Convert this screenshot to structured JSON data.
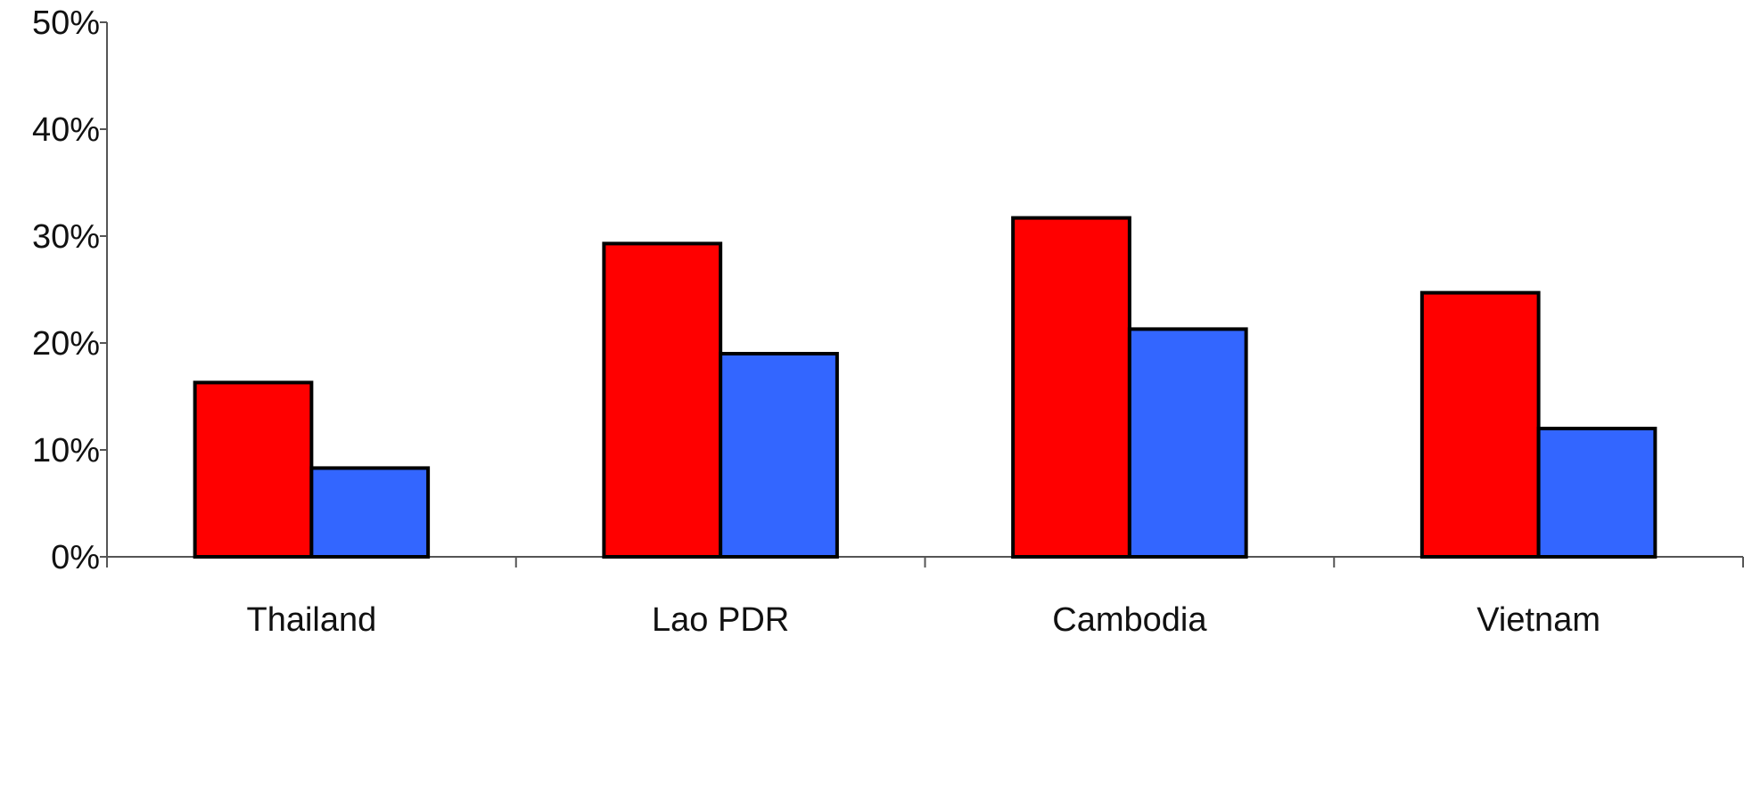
{
  "chart_data": {
    "type": "bar",
    "categories": [
      "Thailand",
      "Lao PDR",
      "Cambodia",
      "Vietnam"
    ],
    "series": [
      {
        "values": [
          16.3,
          29.3,
          31.7,
          24.7
        ],
        "color": "#ff0000"
      },
      {
        "values": [
          8.3,
          19.0,
          21.3,
          12.0
        ],
        "color": "#3366ff"
      }
    ],
    "ylim": [
      0,
      50
    ],
    "yticks": [
      0,
      10,
      20,
      30,
      40,
      50
    ],
    "ytick_labels": [
      "0%",
      "10%",
      "20%",
      "30%",
      "40%",
      "50%"
    ],
    "title": "",
    "xlabel": "",
    "ylabel": "",
    "grid": false,
    "legend": "none"
  }
}
